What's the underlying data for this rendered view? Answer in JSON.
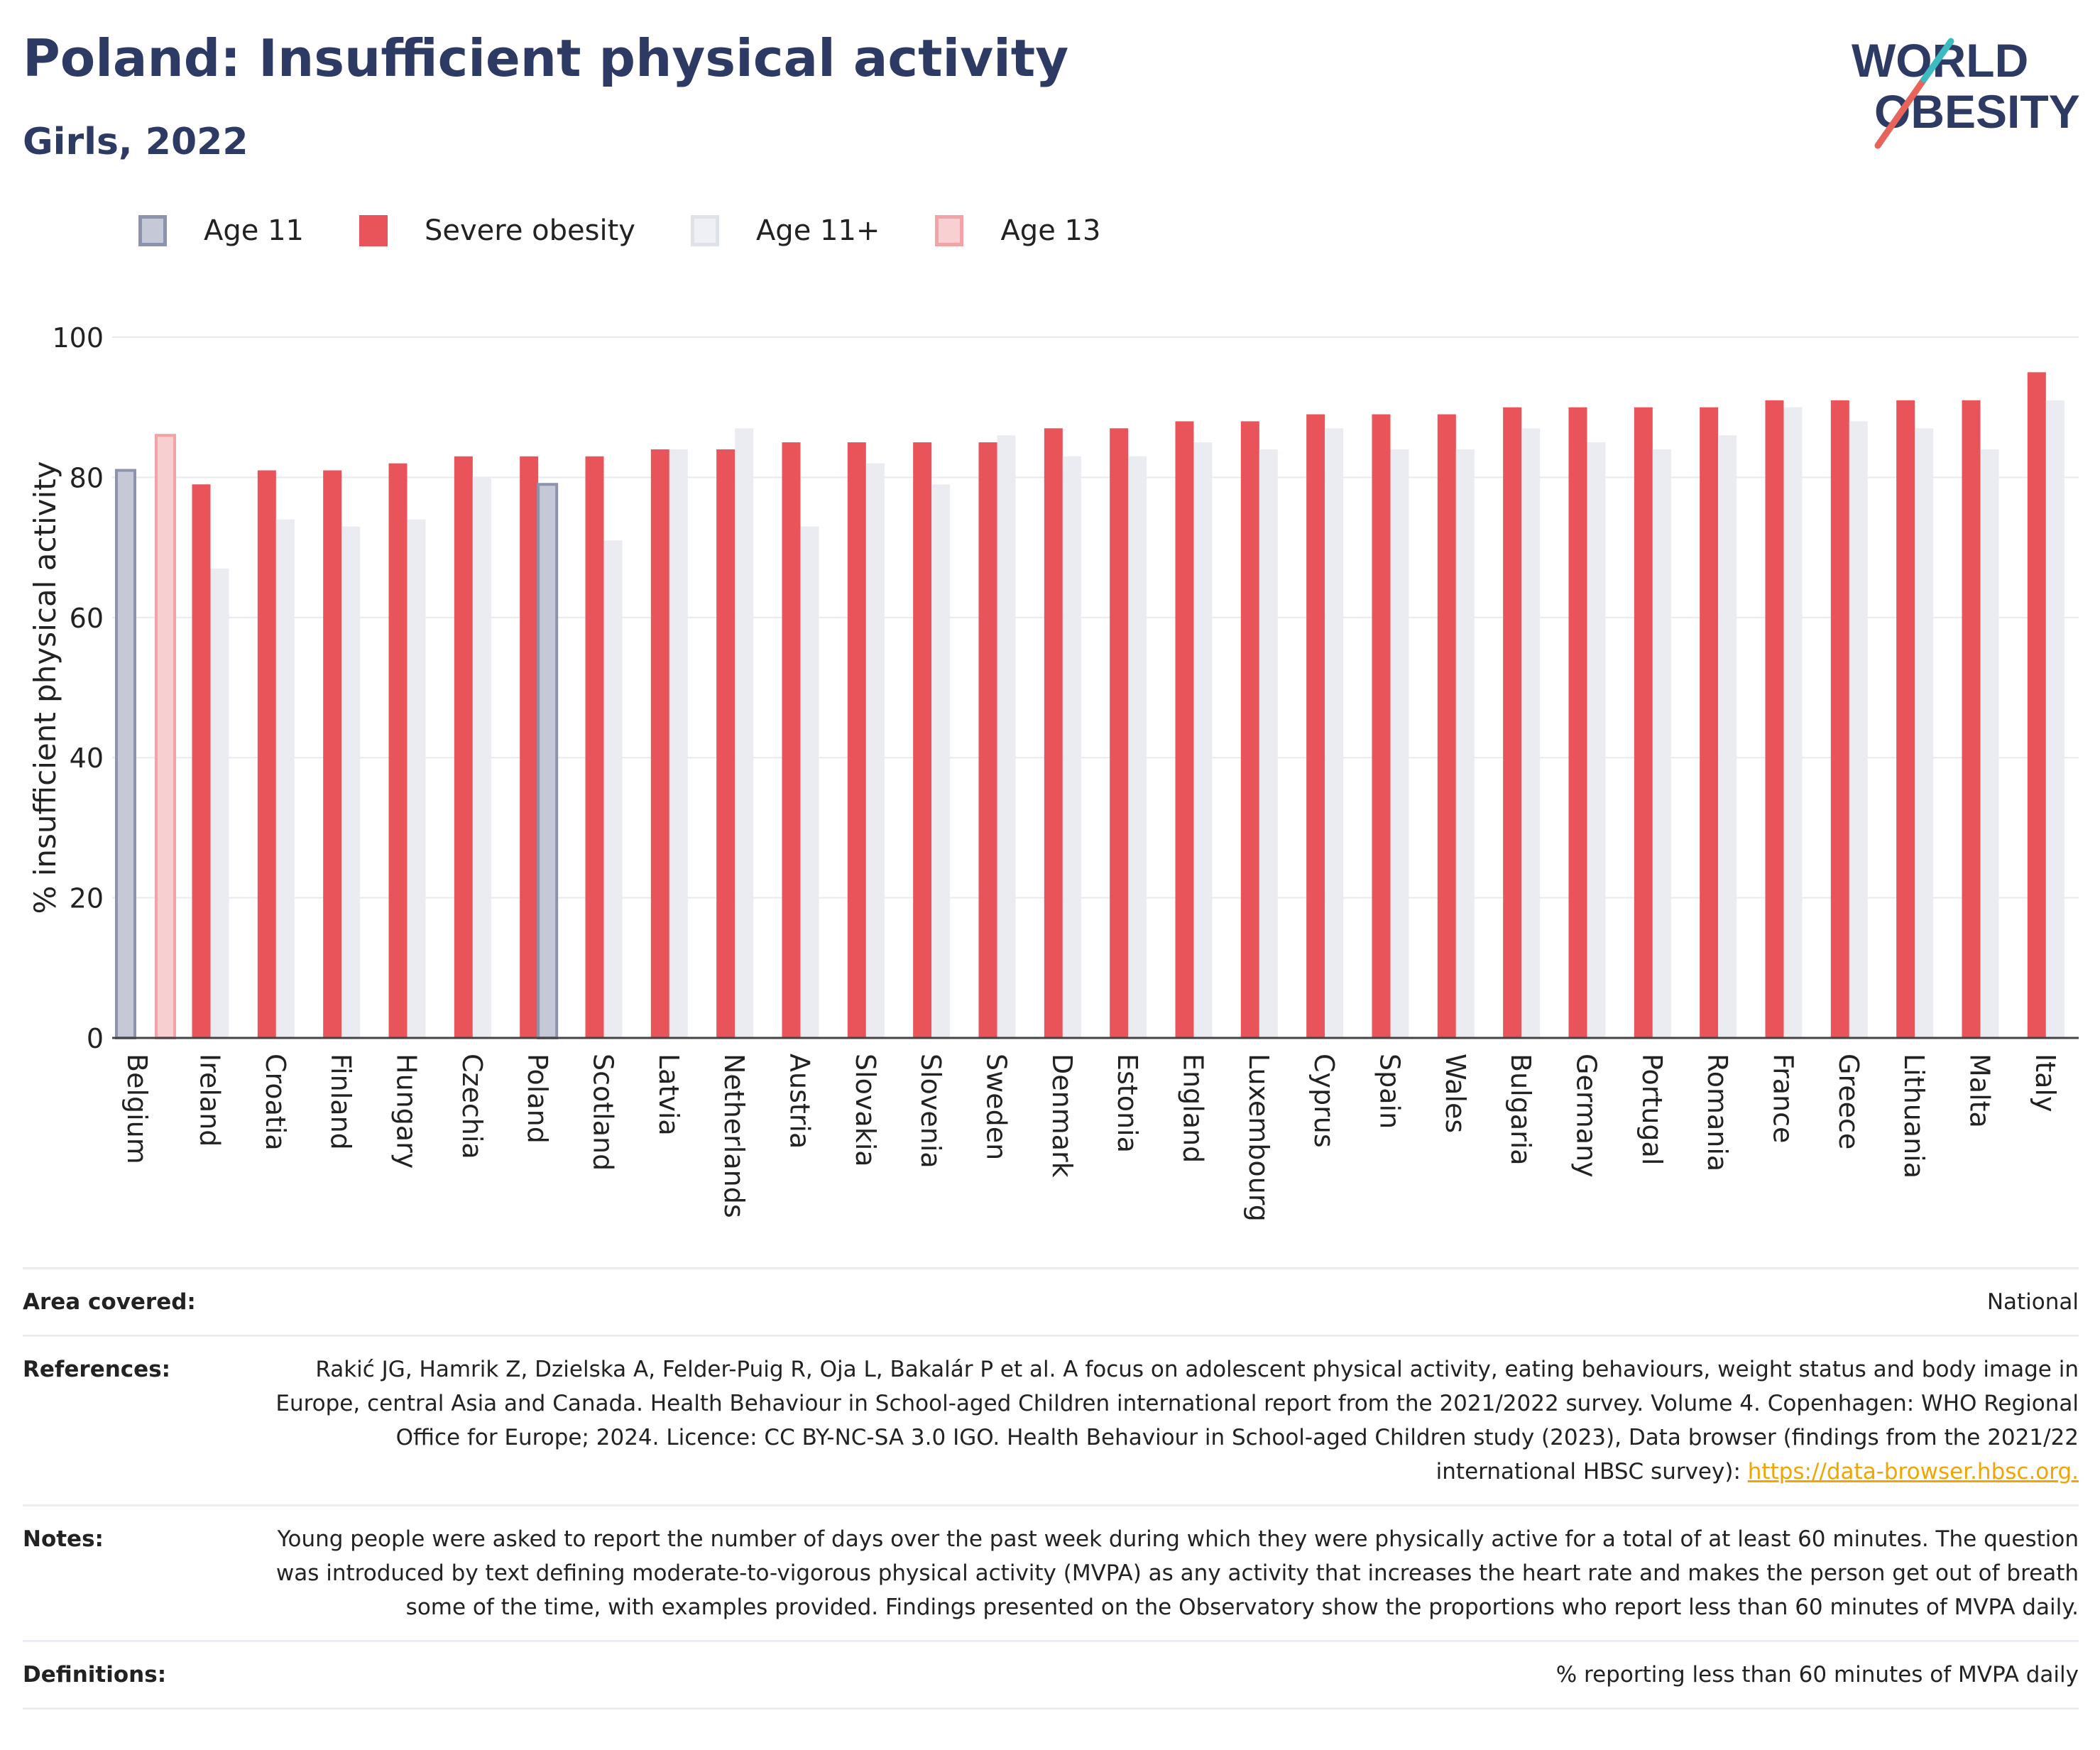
{
  "header": {
    "title": "Poland: Insufficient physical activity",
    "subtitle": "Girls, 2022",
    "logo_line1": "WORLD",
    "logo_line2": "OBESITY"
  },
  "legend": [
    {
      "label": "Age 11",
      "color": "#9aa0b8",
      "style": "outline"
    },
    {
      "label": "Severe obesity",
      "color": "#e8545a",
      "style": "solid"
    },
    {
      "label": "Age 11+",
      "color": "#e4e6ee",
      "style": "outline"
    },
    {
      "label": "Age 13",
      "color": "#f4a7aa",
      "style": "outline"
    }
  ],
  "chart_data": {
    "type": "bar",
    "title": "Poland: Insufficient physical activity",
    "subtitle": "Girls, 2022",
    "ylabel": "% insufficient physical activity",
    "ylim": [
      0,
      100
    ],
    "yticks": [
      0,
      20,
      40,
      60,
      80,
      100
    ],
    "grid": true,
    "legend_position": "top-left",
    "categories": [
      "Belgium",
      "Ireland",
      "Croatia",
      "Finland",
      "Hungary",
      "Czechia",
      "Poland",
      "Scotland",
      "Latvia",
      "Netherlands",
      "Austria",
      "Slovakia",
      "Slovenia",
      "Sweden",
      "Denmark",
      "Estonia",
      "England",
      "Luxembourg",
      "Cyprus",
      "Spain",
      "Wales",
      "Bulgaria",
      "Germany",
      "Portugal",
      "Romania",
      "France",
      "Greece",
      "Lithuania",
      "Malta",
      "Italy"
    ],
    "series": [
      {
        "name": "Age 11",
        "color": "#c5c8d6",
        "values": [
          81,
          null,
          null,
          null,
          null,
          null,
          79,
          null,
          null,
          null,
          null,
          null,
          null,
          null,
          null,
          null,
          null,
          null,
          null,
          null,
          null,
          null,
          null,
          null,
          null,
          null,
          null,
          null,
          null,
          null
        ]
      },
      {
        "name": "Age 13",
        "color": "#f6c3c5",
        "values": [
          86,
          null,
          null,
          null,
          null,
          null,
          null,
          null,
          null,
          null,
          null,
          null,
          null,
          null,
          null,
          null,
          null,
          null,
          null,
          null,
          null,
          null,
          null,
          null,
          null,
          null,
          null,
          null,
          null,
          null
        ]
      },
      {
        "name": "Severe obesity",
        "color": "#e8545a",
        "values": [
          null,
          79,
          81,
          81,
          82,
          83,
          83,
          83,
          84,
          84,
          85,
          85,
          85,
          85,
          87,
          87,
          88,
          88,
          89,
          89,
          89,
          90,
          90,
          90,
          90,
          91,
          91,
          91,
          91,
          95
        ]
      },
      {
        "name": "Age 11+",
        "color": "#ebecf2",
        "values": [
          null,
          67,
          74,
          73,
          74,
          80,
          null,
          71,
          84,
          87,
          73,
          82,
          79,
          86,
          83,
          83,
          85,
          84,
          87,
          84,
          84,
          87,
          85,
          84,
          86,
          90,
          88,
          87,
          84,
          91
        ]
      }
    ]
  },
  "info": {
    "area_label": "Area covered:",
    "area_value": "National",
    "references_label": "References:",
    "references_value": "Rakić JG, Hamrik Z, Dzielska A, Felder-Puig R, Oja L, Bakalár P et al. A focus on adolescent physical activity, eating behaviours, weight status and body image in Europe, central Asia and Canada. Health Behaviour in School-aged Children international report from the 2021/2022 survey. Volume 4. Copenhagen: WHO Regional Office for Europe; 2024. Licence: CC BY-NC-SA 3.0 IGO. Health Behaviour in School-aged Children study (2023), Data browser (findings from the 2021/22 international HBSC survey): ",
    "references_link": "https://data-browser.hbsc.org.",
    "notes_label": "Notes:",
    "notes_value": "Young people were asked to report the number of days over the past week during which they were physically active for a total of at least 60 minutes. The question was introduced by text defining moderate-to-vigorous physical activity (MVPA) as any activity that increases the heart rate and makes the person get out of breath some of the time, with examples provided. Findings presented on the Observatory show the proportions who report less than 60 minutes of MVPA daily.",
    "definitions_label": "Definitions:",
    "definitions_value": "% reporting less than 60 minutes of MVPA daily"
  }
}
